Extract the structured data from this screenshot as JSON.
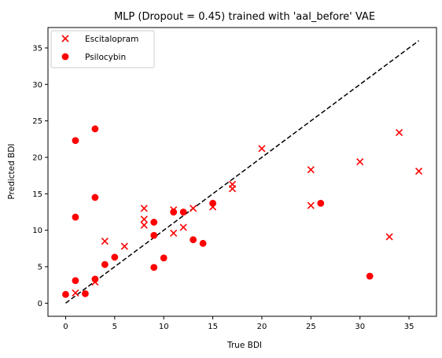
{
  "chart_data": {
    "type": "scatter",
    "title": "MLP (Dropout = 0.45) trained with 'aal_before' VAE",
    "xlabel": "True BDI",
    "ylabel": "Predicted BDI",
    "xlim": [
      -1.8,
      37.8
    ],
    "ylim": [
      -1.8,
      37.8
    ],
    "xticks": [
      0,
      5,
      10,
      15,
      20,
      25,
      30,
      35
    ],
    "yticks": [
      0,
      5,
      10,
      15,
      20,
      25,
      30,
      35
    ],
    "grid": false,
    "legend_position": "top-left",
    "reference_line": {
      "style": "dashed",
      "color": "#000000",
      "from": [
        0,
        0
      ],
      "to": [
        36,
        36
      ]
    },
    "series": [
      {
        "name": "Escitalopram",
        "marker": "x",
        "color": "#ff0000",
        "points": [
          [
            1,
            1.4
          ],
          [
            3,
            2.9
          ],
          [
            4,
            8.5
          ],
          [
            6,
            7.8
          ],
          [
            8,
            10.7
          ],
          [
            8,
            11.5
          ],
          [
            8,
            13.0
          ],
          [
            11,
            9.6
          ],
          [
            11,
            12.8
          ],
          [
            12,
            10.4
          ],
          [
            13,
            13.0
          ],
          [
            15,
            13.2
          ],
          [
            17,
            15.7
          ],
          [
            17,
            16.3
          ],
          [
            20,
            21.2
          ],
          [
            25,
            13.4
          ],
          [
            25,
            18.3
          ],
          [
            30,
            19.4
          ],
          [
            33,
            9.1
          ],
          [
            34,
            23.4
          ],
          [
            36,
            18.1
          ]
        ]
      },
      {
        "name": "Psilocybin",
        "marker": "o",
        "color": "#ff0000",
        "points": [
          [
            0,
            1.2
          ],
          [
            1,
            3.1
          ],
          [
            1,
            11.8
          ],
          [
            1,
            22.3
          ],
          [
            2,
            1.3
          ],
          [
            3,
            3.3
          ],
          [
            3,
            14.5
          ],
          [
            3,
            23.9
          ],
          [
            4,
            5.3
          ],
          [
            5,
            6.3
          ],
          [
            9,
            4.9
          ],
          [
            9,
            9.3
          ],
          [
            9,
            11.1
          ],
          [
            10,
            6.2
          ],
          [
            11,
            12.5
          ],
          [
            12,
            12.5
          ],
          [
            13,
            8.7
          ],
          [
            14,
            8.2
          ],
          [
            15,
            13.7
          ],
          [
            26,
            13.7
          ],
          [
            31,
            3.7
          ]
        ]
      }
    ]
  }
}
